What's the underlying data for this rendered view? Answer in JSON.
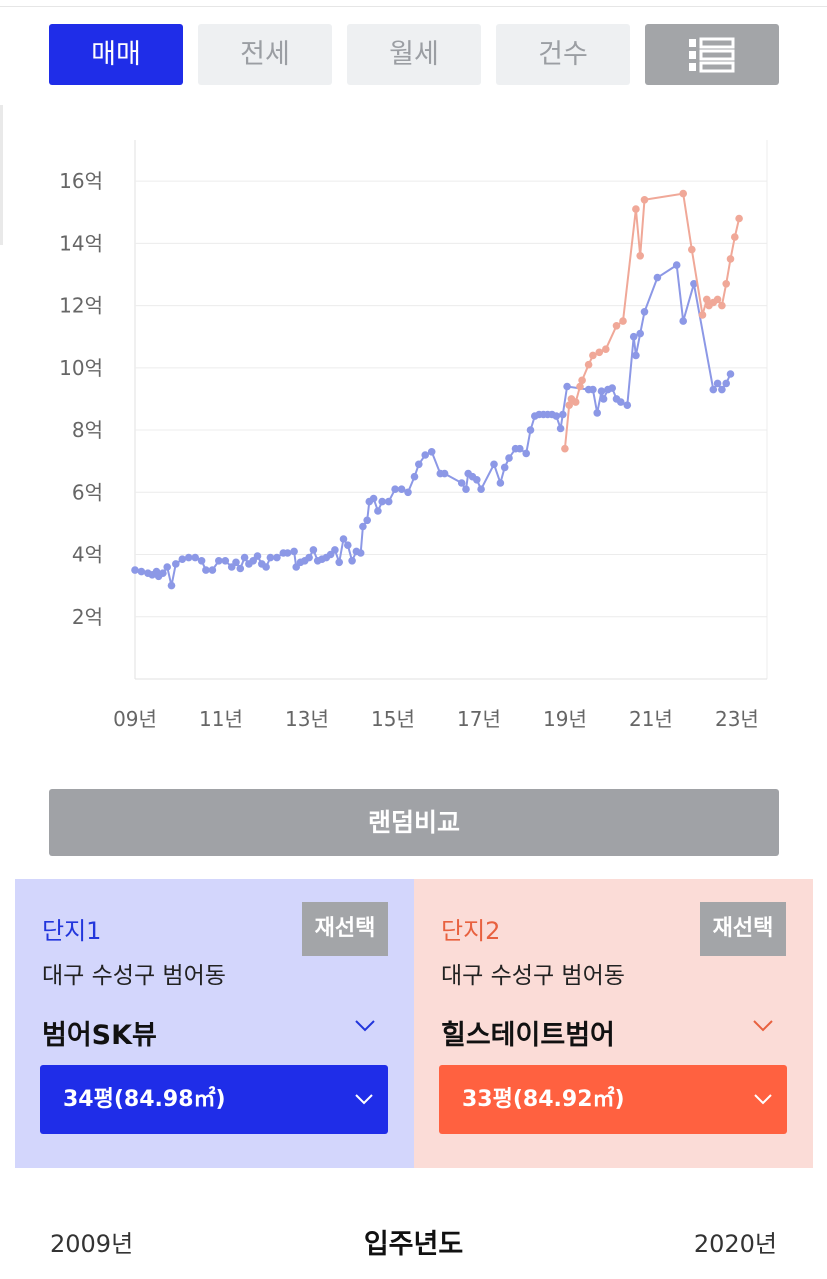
{
  "tabs": [
    "매매",
    "전세",
    "월세",
    "건수"
  ],
  "active_tab": "매매",
  "list_icon": "list-icon",
  "chart_data": {
    "type": "line",
    "y_unit": "억",
    "ylim": [
      0,
      17
    ],
    "xlim": [
      2009.0,
      2023.7
    ],
    "yticks": [
      "2억",
      "4억",
      "6억",
      "8억",
      "10억",
      "12억",
      "14억",
      "16억"
    ],
    "xticks": [
      "09년",
      "11년",
      "13년",
      "15년",
      "17년",
      "19년",
      "21년",
      "23년"
    ],
    "grid": true,
    "series": [
      {
        "color": "#8c98e6",
        "points": [
          [
            2009.0,
            3.5
          ],
          [
            2009.15,
            3.45
          ],
          [
            2009.3,
            3.4
          ],
          [
            2009.4,
            3.35
          ],
          [
            2009.5,
            3.45
          ],
          [
            2009.55,
            3.3
          ],
          [
            2009.65,
            3.4
          ],
          [
            2009.75,
            3.6
          ],
          [
            2009.85,
            3.0
          ],
          [
            2009.95,
            3.7
          ],
          [
            2010.1,
            3.85
          ],
          [
            2010.25,
            3.9
          ],
          [
            2010.4,
            3.9
          ],
          [
            2010.55,
            3.8
          ],
          [
            2010.65,
            3.5
          ],
          [
            2010.8,
            3.5
          ],
          [
            2010.95,
            3.8
          ],
          [
            2011.1,
            3.8
          ],
          [
            2011.25,
            3.6
          ],
          [
            2011.35,
            3.75
          ],
          [
            2011.45,
            3.55
          ],
          [
            2011.55,
            3.9
          ],
          [
            2011.65,
            3.7
          ],
          [
            2011.75,
            3.8
          ],
          [
            2011.85,
            3.95
          ],
          [
            2011.95,
            3.7
          ],
          [
            2012.05,
            3.6
          ],
          [
            2012.15,
            3.9
          ],
          [
            2012.3,
            3.9
          ],
          [
            2012.45,
            4.05
          ],
          [
            2012.55,
            4.05
          ],
          [
            2012.7,
            4.1
          ],
          [
            2012.75,
            3.6
          ],
          [
            2012.85,
            3.75
          ],
          [
            2012.95,
            3.8
          ],
          [
            2013.05,
            3.9
          ],
          [
            2013.15,
            4.15
          ],
          [
            2013.25,
            3.8
          ],
          [
            2013.35,
            3.85
          ],
          [
            2013.45,
            3.9
          ],
          [
            2013.55,
            4.0
          ],
          [
            2013.65,
            4.15
          ],
          [
            2013.75,
            3.75
          ],
          [
            2013.85,
            4.5
          ],
          [
            2013.95,
            4.3
          ],
          [
            2014.05,
            3.8
          ],
          [
            2014.15,
            4.1
          ],
          [
            2014.25,
            4.05
          ],
          [
            2014.3,
            4.9
          ],
          [
            2014.4,
            5.1
          ],
          [
            2014.45,
            5.7
          ],
          [
            2014.55,
            5.8
          ],
          [
            2014.65,
            5.4
          ],
          [
            2014.75,
            5.7
          ],
          [
            2014.9,
            5.7
          ],
          [
            2015.05,
            6.1
          ],
          [
            2015.2,
            6.1
          ],
          [
            2015.35,
            6.0
          ],
          [
            2015.5,
            6.5
          ],
          [
            2015.6,
            6.9
          ],
          [
            2015.75,
            7.2
          ],
          [
            2015.9,
            7.3
          ],
          [
            2016.1,
            6.6
          ],
          [
            2016.2,
            6.6
          ],
          [
            2016.6,
            6.3
          ],
          [
            2016.7,
            6.1
          ],
          [
            2016.75,
            6.6
          ],
          [
            2016.85,
            6.5
          ],
          [
            2016.95,
            6.4
          ],
          [
            2017.05,
            6.1
          ],
          [
            2017.35,
            6.9
          ],
          [
            2017.5,
            6.3
          ],
          [
            2017.6,
            6.8
          ],
          [
            2017.7,
            7.1
          ],
          [
            2017.85,
            7.4
          ],
          [
            2017.95,
            7.4
          ],
          [
            2018.1,
            7.25
          ],
          [
            2018.2,
            8.0
          ],
          [
            2018.3,
            8.45
          ],
          [
            2018.4,
            8.5
          ],
          [
            2018.5,
            8.5
          ],
          [
            2018.6,
            8.5
          ],
          [
            2018.7,
            8.5
          ],
          [
            2018.8,
            8.45
          ],
          [
            2018.9,
            8.05
          ],
          [
            2018.95,
            8.5
          ],
          [
            2019.05,
            9.4
          ],
          [
            2019.55,
            9.3
          ],
          [
            2019.65,
            9.3
          ],
          [
            2019.75,
            8.55
          ],
          [
            2019.85,
            9.25
          ],
          [
            2019.9,
            9.0
          ],
          [
            2020.0,
            9.3
          ],
          [
            2020.1,
            9.35
          ],
          [
            2020.2,
            9.0
          ],
          [
            2020.3,
            8.9
          ],
          [
            2020.45,
            8.8
          ],
          [
            2020.6,
            11.0
          ],
          [
            2020.65,
            10.4
          ],
          [
            2020.75,
            11.1
          ],
          [
            2020.85,
            11.8
          ],
          [
            2021.15,
            12.9
          ],
          [
            2021.6,
            13.3
          ],
          [
            2021.75,
            11.5
          ],
          [
            2022.0,
            12.7
          ],
          [
            2022.45,
            9.3
          ],
          [
            2022.55,
            9.5
          ],
          [
            2022.65,
            9.3
          ],
          [
            2022.75,
            9.5
          ],
          [
            2022.85,
            9.8
          ]
        ]
      },
      {
        "color": "#f0a898",
        "points": [
          [
            2019.0,
            7.4
          ],
          [
            2019.1,
            8.8
          ],
          [
            2019.15,
            9.0
          ],
          [
            2019.25,
            8.9
          ],
          [
            2019.35,
            9.4
          ],
          [
            2019.4,
            9.6
          ],
          [
            2019.55,
            10.1
          ],
          [
            2019.65,
            10.4
          ],
          [
            2019.8,
            10.5
          ],
          [
            2019.95,
            10.6
          ],
          [
            2020.2,
            11.35
          ],
          [
            2020.35,
            11.5
          ],
          [
            2020.65,
            15.1
          ],
          [
            2020.75,
            13.6
          ],
          [
            2020.85,
            15.4
          ],
          [
            2021.75,
            15.6
          ],
          [
            2021.95,
            13.8
          ],
          [
            2022.2,
            11.7
          ],
          [
            2022.3,
            12.2
          ],
          [
            2022.35,
            12.0
          ],
          [
            2022.45,
            12.1
          ],
          [
            2022.55,
            12.2
          ],
          [
            2022.65,
            12.0
          ],
          [
            2022.75,
            12.7
          ],
          [
            2022.85,
            13.5
          ],
          [
            2022.95,
            14.2
          ],
          [
            2023.05,
            14.8
          ]
        ]
      }
    ]
  },
  "random_compare_label": "랜덤비교",
  "complex1": {
    "title": "단지1",
    "reselect": "재선택",
    "address": "대구 수성구 범어동",
    "name": "범어SK뷰",
    "size": "34평(84.98㎡)",
    "color": "#1f2de8"
  },
  "complex2": {
    "title": "단지2",
    "reselect": "재선택",
    "address": "대구 수성구 범어동",
    "name": "힐스테이트범어",
    "size": "33평(84.92㎡)",
    "color": "#ff6140"
  },
  "move_in": {
    "label": "입주년도",
    "min": "2009년",
    "max": "2020년"
  }
}
